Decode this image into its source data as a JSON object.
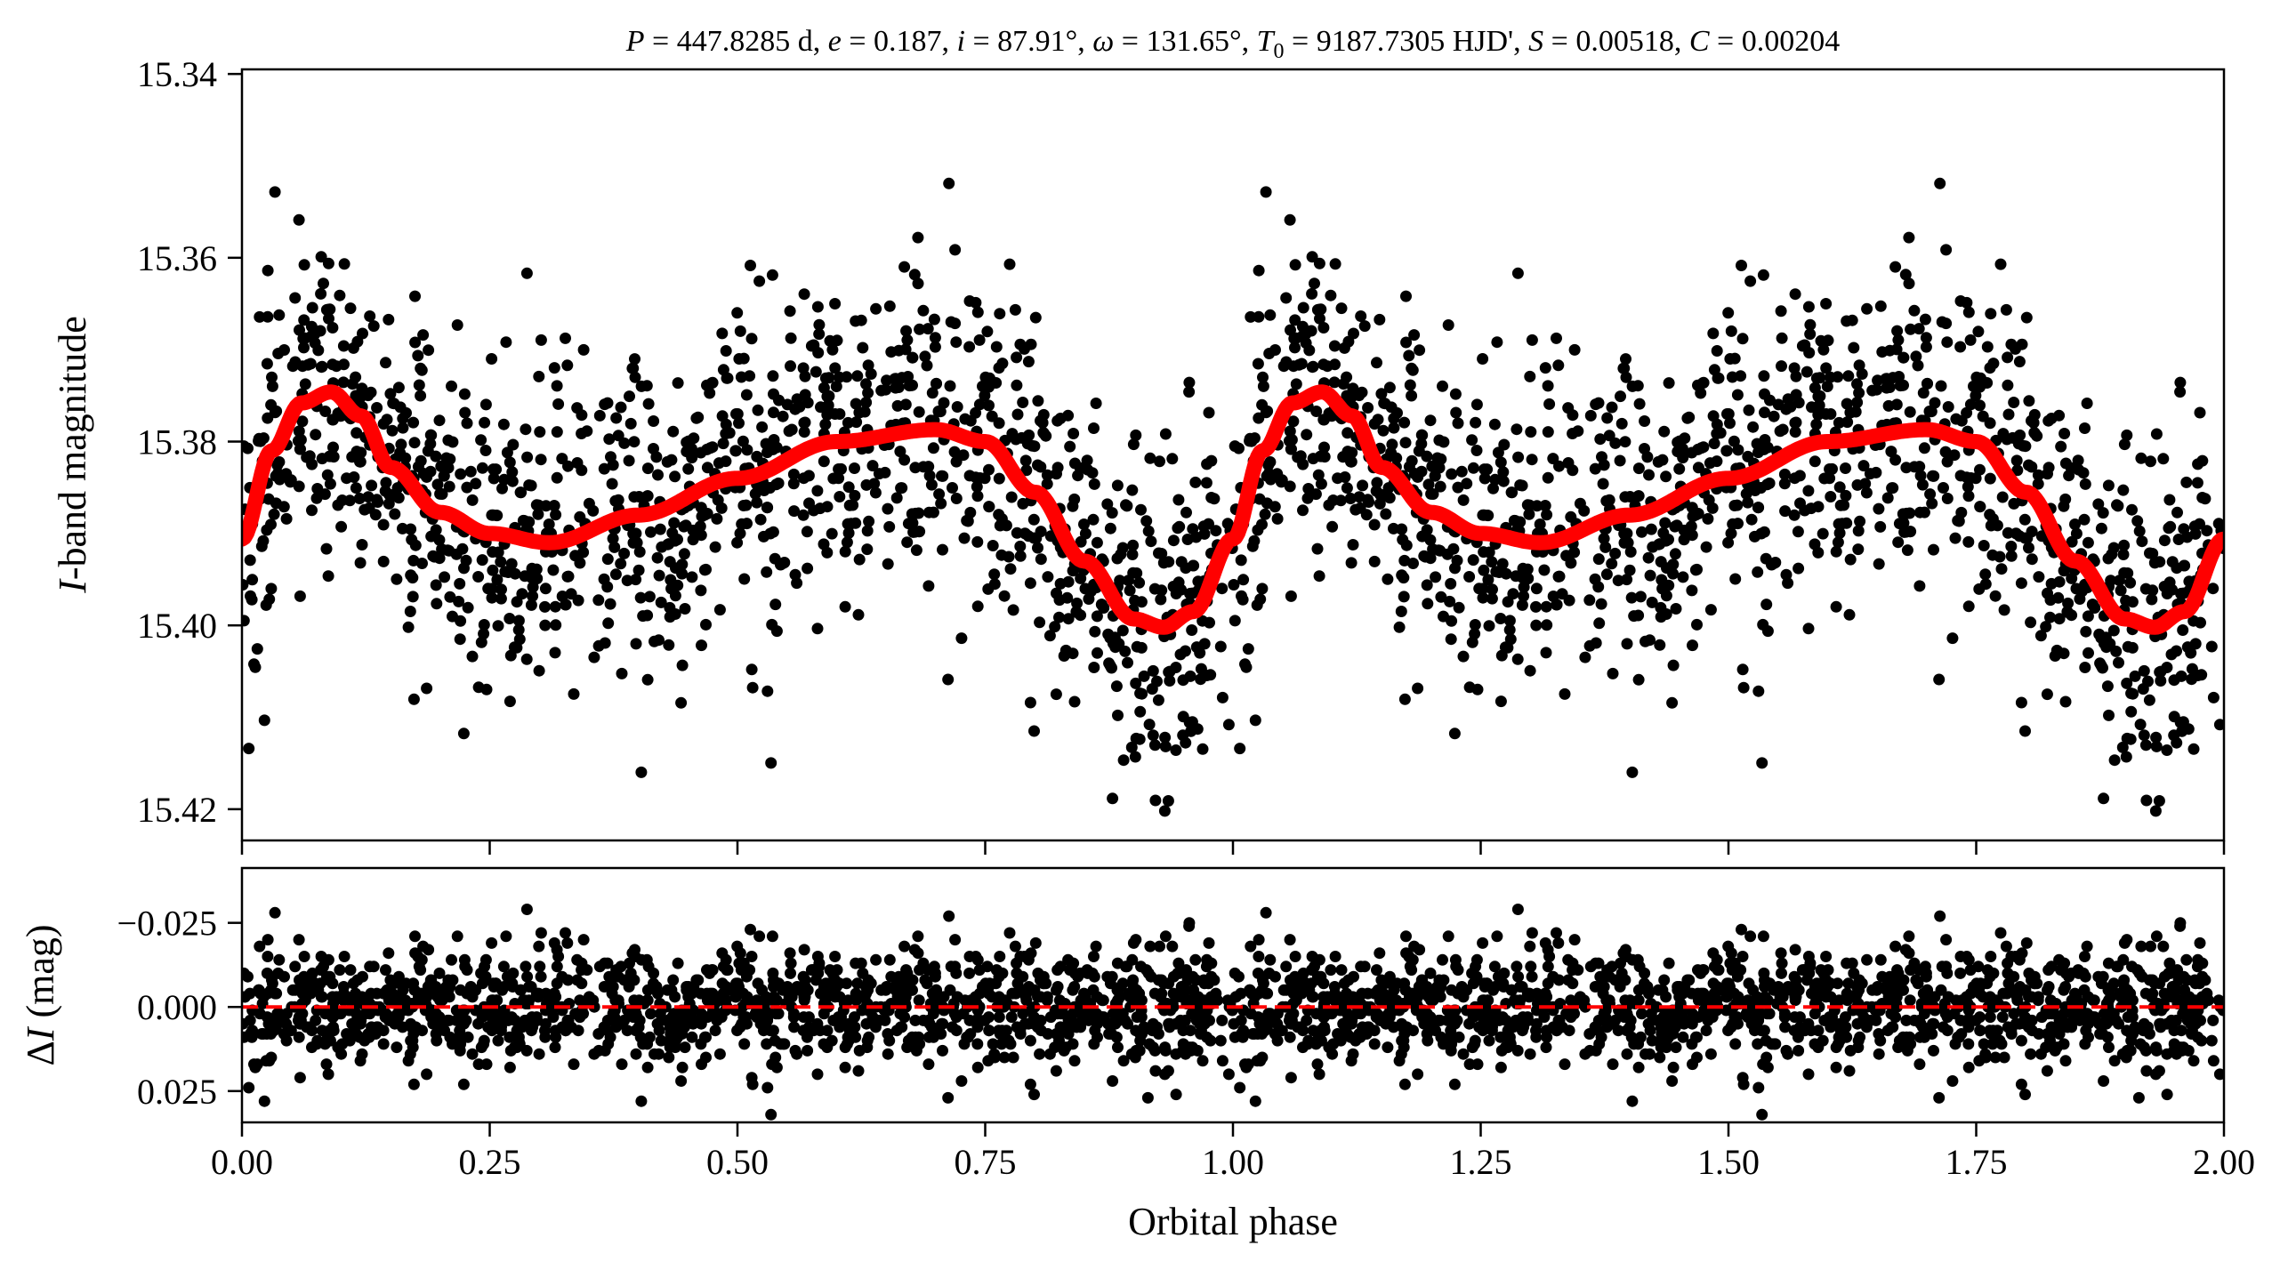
{
  "chart_data": [
    {
      "type": "scatter",
      "panel": "top",
      "title": "P = 447.8285 d, e = 0.187, i = 87.91°, ω = 131.65°, T0 = 9187.7305 HJD', S = 0.00518, C = 0.00204",
      "title_parts": {
        "P": "447.8285",
        "P_unit": "d",
        "e": "0.187",
        "i": "87.91°",
        "omega": "131.65°",
        "T0": "9187.7305",
        "T0_unit": "HJD'",
        "S": "0.00518",
        "C": "0.00204"
      },
      "ylabel": "I-band magnitude",
      "ylabel_italic": "I",
      "ylabel_rest": "-band magnitude",
      "xlim": [
        0.0,
        2.0
      ],
      "ylim": [
        15.4234,
        15.3395
      ],
      "y_inverted": true,
      "yticks": [
        "15.34",
        "15.36",
        "15.38",
        "15.40",
        "15.42"
      ],
      "ytick_values": [
        15.34,
        15.36,
        15.38,
        15.4,
        15.42
      ],
      "xticks": [
        0.0,
        0.25,
        0.5,
        0.75,
        1.0,
        1.25,
        1.5,
        1.75,
        2.0
      ],
      "series": [
        {
          "name": "observations",
          "kind": "scatter",
          "color": "#000000",
          "n_points_per_cycle": 1300,
          "repeated_at_phase_offset": 1.0
        },
        {
          "name": "binary model",
          "kind": "line",
          "color": "#ff0000",
          "model_phase": [
            0.0,
            0.03,
            0.06,
            0.09,
            0.12,
            0.15,
            0.2,
            0.25,
            0.31,
            0.4,
            0.5,
            0.6,
            0.7,
            0.75,
            0.8,
            0.85,
            0.9,
            0.93,
            0.96,
            1.0
          ],
          "model_mag": [
            15.3906,
            15.381,
            15.3758,
            15.3746,
            15.3772,
            15.3828,
            15.3877,
            15.39,
            15.391,
            15.388,
            15.384,
            15.38,
            15.3787,
            15.38,
            15.3855,
            15.393,
            15.3993,
            15.4002,
            15.3985,
            15.3906
          ]
        }
      ]
    },
    {
      "type": "scatter",
      "panel": "bottom",
      "ylabel": "ΔI (mag)",
      "ylabel_delta": "Δ",
      "ylabel_italic": "I",
      "ylabel_rest": " (mag)",
      "xlabel": "Orbital phase",
      "xlim": [
        0.0,
        2.0
      ],
      "ylim": [
        0.0343,
        -0.0413
      ],
      "y_inverted": true,
      "yticks": [
        "−0.025",
        "0.000",
        "0.025"
      ],
      "ytick_values": [
        -0.025,
        0.0,
        0.025
      ],
      "xticks": [
        0.0,
        0.25,
        0.5,
        0.75,
        1.0,
        1.25,
        1.5,
        1.75,
        2.0
      ],
      "xtick_labels": [
        "0.00",
        "0.25",
        "0.50",
        "0.75",
        "1.00",
        "1.25",
        "1.50",
        "1.75",
        "2.00"
      ],
      "series": [
        {
          "name": "residuals",
          "kind": "scatter",
          "color": "#000000",
          "rms": 0.0085
        },
        {
          "name": "zero line",
          "kind": "hline",
          "y": 0.0,
          "color": "#ff0000",
          "dash": "dashed"
        }
      ]
    }
  ]
}
